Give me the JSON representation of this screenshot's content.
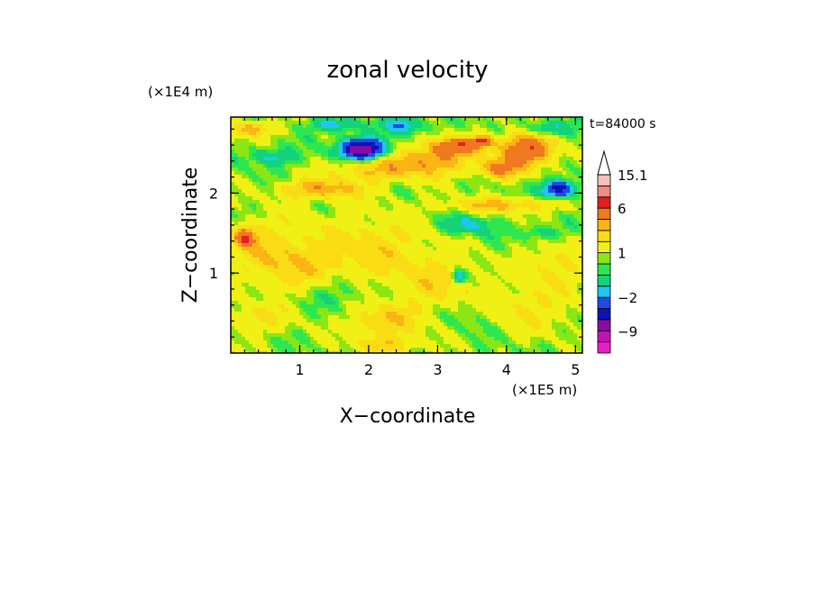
{
  "chart_data": {
    "type": "heatmap",
    "title": "zonal velocity",
    "xlabel": "X−coordinate",
    "ylabel": "Z−coordinate",
    "x_scale_label": "(×1E5 m)",
    "y_scale_label": "(×1E4 m)",
    "time_label": "t=84000 s",
    "xlim": [
      0,
      5.1
    ],
    "ylim": [
      0,
      2.95
    ],
    "x_ticks": [
      "1",
      "2",
      "3",
      "4",
      "5"
    ],
    "x_tick_values": [
      1,
      2,
      3,
      4,
      5
    ],
    "y_ticks": [
      "1",
      "2"
    ],
    "y_tick_values": [
      1,
      2
    ],
    "x_minor_step": 0.2,
    "y_minor_step": 0.2,
    "colorbar": {
      "levels": [
        {
          "lo": -15,
          "hi": -12,
          "color": "#e81ec8"
        },
        {
          "lo": -12,
          "hi": -9,
          "color": "#c014b0"
        },
        {
          "lo": -9,
          "hi": -6,
          "color": "#8a0aa8"
        },
        {
          "lo": -6,
          "hi": -4,
          "color": "#0a14b4"
        },
        {
          "lo": -4,
          "hi": -2,
          "color": "#1e4be6"
        },
        {
          "lo": -2,
          "hi": -1,
          "color": "#1ec8f0"
        },
        {
          "lo": -1,
          "hi": 0,
          "color": "#14d27a"
        },
        {
          "lo": 0,
          "hi": 0.5,
          "color": "#2ee650"
        },
        {
          "lo": 0.5,
          "hi": 1,
          "color": "#8ce614"
        },
        {
          "lo": 1,
          "hi": 2,
          "color": "#f0f014"
        },
        {
          "lo": 2,
          "hi": 3,
          "color": "#fadc14"
        },
        {
          "lo": 3,
          "hi": 4,
          "color": "#fab414"
        },
        {
          "lo": 4,
          "hi": 6,
          "color": "#f0781e"
        },
        {
          "lo": 6,
          "hi": 9,
          "color": "#e61e1e"
        },
        {
          "lo": 9,
          "hi": 12,
          "color": "#f08c82"
        },
        {
          "lo": 12,
          "hi": 15.1,
          "color": "#f5c0c0"
        }
      ],
      "labels": [
        {
          "value": 15.1,
          "text": "15.1"
        },
        {
          "value": 6,
          "text": "6"
        },
        {
          "value": 1,
          "text": "1"
        },
        {
          "value": -2,
          "text": "−2"
        },
        {
          "value": -9,
          "text": "−9"
        }
      ],
      "extend": "max"
    },
    "blobs": [
      {
        "x": 0.5,
        "z": 1.35,
        "rx": 0.55,
        "rz": 0.35,
        "v": 1.6
      },
      {
        "x": 1.0,
        "z": 1.05,
        "rx": 0.7,
        "rz": 0.3,
        "v": 1.5
      },
      {
        "x": 2.0,
        "z": 1.3,
        "rx": 0.9,
        "rz": 0.45,
        "v": 1.8
      },
      {
        "x": 3.0,
        "z": 0.85,
        "rx": 0.6,
        "rz": 0.35,
        "v": 1.5
      },
      {
        "x": 4.2,
        "z": 0.55,
        "rx": 0.8,
        "rz": 0.3,
        "v": 1.4
      },
      {
        "x": 2.2,
        "z": 0.4,
        "rx": 0.5,
        "rz": 0.22,
        "v": 2.2
      },
      {
        "x": 0.4,
        "z": 0.45,
        "rx": 0.5,
        "rz": 0.2,
        "v": 1.4
      },
      {
        "x": 4.7,
        "z": 1.1,
        "rx": 0.5,
        "rz": 0.3,
        "v": 1.5
      },
      {
        "x": 1.6,
        "z": 0.8,
        "rx": 0.5,
        "rz": 0.25,
        "v": -1.2
      },
      {
        "x": 3.5,
        "z": 0.5,
        "rx": 0.4,
        "rz": 0.25,
        "v": -1.0
      },
      {
        "x": 1.3,
        "z": 2.05,
        "rx": 0.6,
        "rz": 0.12,
        "v": 3.0
      },
      {
        "x": 2.2,
        "z": 2.3,
        "rx": 0.7,
        "rz": 0.15,
        "v": 2.6
      },
      {
        "x": 3.0,
        "z": 2.45,
        "rx": 0.5,
        "rz": 0.18,
        "v": 3.2
      },
      {
        "x": 3.3,
        "z": 2.6,
        "rx": 0.35,
        "rz": 0.1,
        "v": 3.8
      },
      {
        "x": 4.3,
        "z": 2.55,
        "rx": 0.4,
        "rz": 0.2,
        "v": 5.2
      },
      {
        "x": 3.9,
        "z": 2.3,
        "rx": 0.3,
        "rz": 0.12,
        "v": 3.5
      },
      {
        "x": 0.2,
        "z": 1.45,
        "rx": 0.15,
        "rz": 0.12,
        "v": 4.5
      },
      {
        "x": 0.3,
        "z": 2.8,
        "rx": 0.3,
        "rz": 0.1,
        "v": 3.0
      },
      {
        "x": 3.9,
        "z": 1.85,
        "rx": 0.8,
        "rz": 0.1,
        "v": 2.4
      },
      {
        "x": 1.9,
        "z": 2.55,
        "rx": 0.3,
        "rz": 0.12,
        "v": -9.0
      },
      {
        "x": 3.65,
        "z": 2.65,
        "rx": 0.15,
        "rz": 0.06,
        "v": 4.8
      },
      {
        "x": 1.5,
        "z": 2.85,
        "rx": 0.3,
        "rz": 0.08,
        "v": -2.5
      },
      {
        "x": 2.5,
        "z": 2.85,
        "rx": 0.25,
        "rz": 0.1,
        "v": -3.0
      },
      {
        "x": 3.4,
        "z": 1.6,
        "rx": 0.35,
        "rz": 0.12,
        "v": -2.0
      },
      {
        "x": 4.5,
        "z": 1.5,
        "rx": 0.3,
        "rz": 0.1,
        "v": -1.5
      },
      {
        "x": 4.75,
        "z": 2.05,
        "rx": 0.22,
        "rz": 0.1,
        "v": -6.0
      },
      {
        "x": 4.6,
        "z": 2.8,
        "rx": 0.3,
        "rz": 0.1,
        "v": -2.5
      },
      {
        "x": 0.6,
        "z": 2.45,
        "rx": 0.3,
        "rz": 0.1,
        "v": -2.2
      },
      {
        "x": 2.3,
        "z": 0.1,
        "rx": 0.5,
        "rz": 0.1,
        "v": 1.8
      },
      {
        "x": 3.3,
        "z": 0.95,
        "rx": 0.1,
        "rz": 0.08,
        "v": -3.0
      }
    ]
  }
}
